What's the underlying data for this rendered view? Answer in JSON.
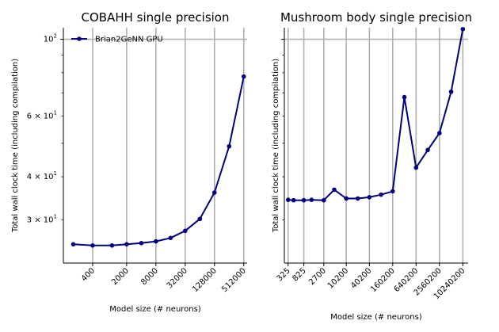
{
  "chart_data": [
    {
      "type": "line",
      "title": "COBAHH single precision",
      "xlabel": "Model size (# neurons)",
      "ylabel": "Total wall clock time (including compilation)",
      "xscale": "log",
      "yscale": "log",
      "xlim": [
        100,
        600000
      ],
      "ylim": [
        22.5,
        108
      ],
      "grid": "x-major",
      "legend": "top-left",
      "x_ticks": [
        {
          "value": 400,
          "label": "400"
        },
        {
          "value": 2000,
          "label": "2000"
        },
        {
          "value": 8000,
          "label": "8000"
        },
        {
          "value": 32000,
          "label": "32000"
        },
        {
          "value": 128000,
          "label": "128000"
        },
        {
          "value": 512000,
          "label": "512000"
        }
      ],
      "y_ticks": [
        {
          "value": 100,
          "label": "10",
          "exp": "2"
        },
        {
          "value": 60,
          "label": "6 × 10",
          "exp": "1"
        },
        {
          "value": 40,
          "label": "4 × 10",
          "exp": "1"
        },
        {
          "value": 30,
          "label": "3 × 10",
          "exp": "1"
        }
      ],
      "series": [
        {
          "name": "Brian2GeNN GPU",
          "color": "#000080",
          "x": [
            160,
            400,
            1000,
            2000,
            4000,
            8000,
            16000,
            32000,
            64000,
            128000,
            256000,
            512000
          ],
          "y": [
            25.5,
            25.3,
            25.3,
            25.5,
            25.7,
            26.0,
            26.6,
            27.9,
            30.2,
            36.0,
            49.0,
            78.0
          ]
        }
      ]
    },
    {
      "type": "line",
      "title": "Mushroom body single precision",
      "xlabel": "Model size (# neurons)",
      "ylabel": "Total wall clock time (including compilation)",
      "xscale": "log",
      "yscale": "log",
      "xlim": [
        260,
        14000000
      ],
      "ylim": [
        22.5,
        108
      ],
      "grid": "x-major",
      "x_ticks": [
        {
          "value": 325,
          "label": "325"
        },
        {
          "value": 825,
          "label": "825"
        },
        {
          "value": 2700,
          "label": "2700"
        },
        {
          "value": 10200,
          "label": "10200"
        },
        {
          "value": 40200,
          "label": "40200"
        },
        {
          "value": 160200,
          "label": "160200"
        },
        {
          "value": 640200,
          "label": "640200"
        },
        {
          "value": 2560200,
          "label": "2560200"
        },
        {
          "value": 10240200,
          "label": "10240200"
        }
      ],
      "y_ticks": [
        100,
        60,
        40,
        30
      ],
      "series": [
        {
          "name": "Brian2GeNN GPU",
          "color": "#000080",
          "x": [
            325,
            450,
            825,
            1300,
            2700,
            5000,
            10200,
            20200,
            40200,
            80200,
            160200,
            320200,
            640200,
            1280200,
            2560200,
            5120200,
            10240200
          ],
          "y": [
            34.3,
            34.2,
            34.2,
            34.3,
            34.2,
            36.7,
            34.6,
            34.6,
            34.9,
            35.5,
            36.3,
            68.0,
            42.5,
            47.8,
            53.5,
            70.5,
            107.0
          ]
        }
      ]
    }
  ]
}
